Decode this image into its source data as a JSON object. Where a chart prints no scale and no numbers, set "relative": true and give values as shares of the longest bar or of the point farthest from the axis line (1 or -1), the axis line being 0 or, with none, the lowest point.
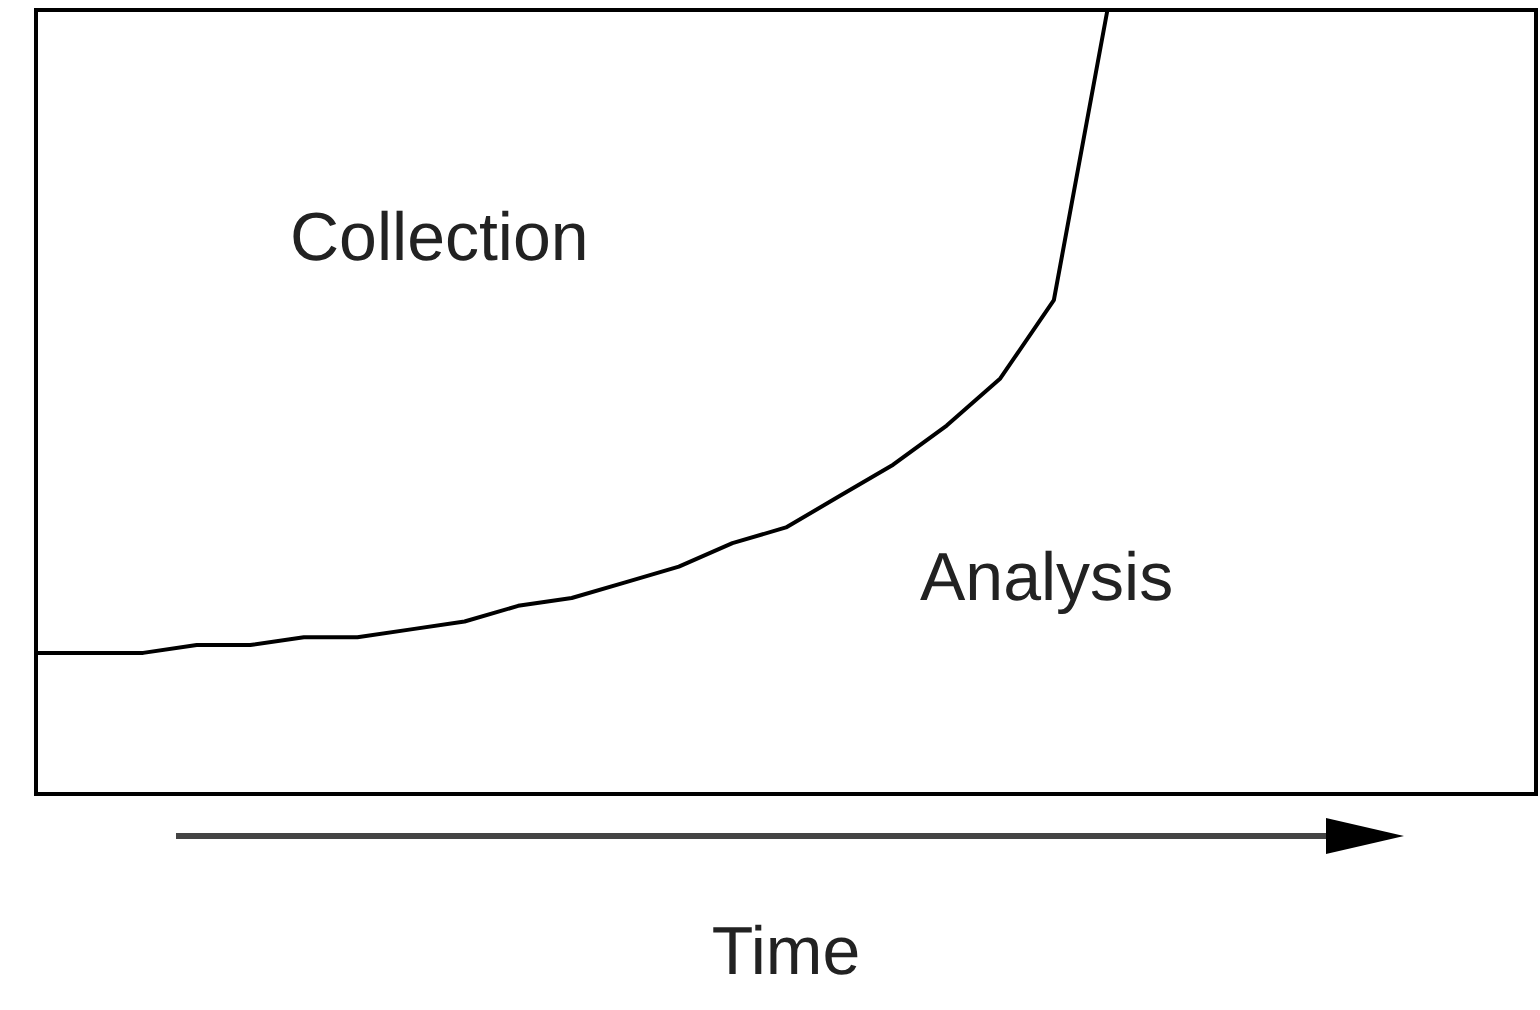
{
  "chart_data": {
    "type": "line",
    "relative": true,
    "xlabel": "Time",
    "annotations": [
      "Collection",
      "Analysis"
    ],
    "categories": [
      null,
      null,
      null,
      null,
      null,
      null,
      null,
      null,
      null,
      null,
      null,
      null,
      null,
      null,
      null,
      null,
      null,
      null,
      null,
      null,
      null,
      null,
      null,
      null,
      null,
      null,
      null,
      null,
      null
    ],
    "series": [
      {
        "color": "#000000",
        "values": [
          0.18,
          0.18,
          0.18,
          0.19,
          0.19,
          0.2,
          0.2,
          0.21,
          0.22,
          0.24,
          0.25,
          0.27,
          0.29,
          0.32,
          0.34,
          0.38,
          0.42,
          0.47,
          0.53,
          0.63,
          1.0,
          null,
          null,
          null,
          null,
          null,
          null,
          null,
          null
        ]
      }
    ],
    "marker": "none",
    "line_style": "solid"
  }
}
